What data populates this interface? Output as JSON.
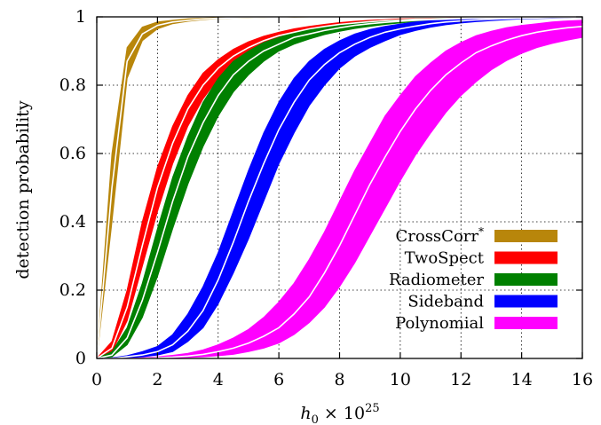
{
  "chart_data": {
    "type": "line",
    "title": "",
    "xlabel": "h0 × 10^25",
    "ylabel": "detection probability",
    "xlim": [
      0,
      16
    ],
    "ylim": [
      0,
      1
    ],
    "x_ticks": [
      "0",
      "2",
      "4",
      "6",
      "8",
      "10",
      "12",
      "14",
      "16"
    ],
    "y_ticks": [
      "0",
      "0.2",
      "0.4",
      "0.6",
      "0.8",
      "1"
    ],
    "grid": true,
    "legend_position": "bottom-right",
    "x": [
      0,
      0.5,
      1,
      1.5,
      2,
      2.5,
      3,
      3.5,
      4,
      4.5,
      5,
      5.5,
      6,
      6.5,
      7,
      7.5,
      8,
      8.5,
      9,
      9.5,
      10,
      10.5,
      11,
      11.5,
      12,
      12.5,
      13,
      13.5,
      14,
      14.5,
      15,
      15.5,
      16
    ],
    "series": [
      {
        "name": "CrossCorr*",
        "color": "#b8860b",
        "mean": [
          0,
          0.5,
          0.87,
          0.95,
          0.975,
          0.985,
          0.99,
          0.994,
          0.996,
          0.997,
          0.998,
          0.999,
          0.999,
          1,
          1,
          1,
          1,
          1,
          1,
          1,
          1,
          1,
          1,
          1,
          1,
          1,
          1,
          1,
          1,
          1,
          1,
          1,
          1
        ],
        "lower": [
          0,
          0.4,
          0.82,
          0.93,
          0.965,
          0.98,
          0.987,
          0.992,
          0.995,
          0.996,
          0.997,
          0.998,
          0.999,
          0.999,
          1,
          1,
          1,
          1,
          1,
          1,
          1,
          1,
          1,
          1,
          1,
          1,
          1,
          1,
          1,
          1,
          1,
          1,
          1
        ],
        "upper": [
          0,
          0.6,
          0.91,
          0.97,
          0.985,
          0.99,
          0.994,
          0.996,
          0.998,
          0.999,
          0.999,
          1,
          1,
          1,
          1,
          1,
          1,
          1,
          1,
          1,
          1,
          1,
          1,
          1,
          1,
          1,
          1,
          1,
          1,
          1,
          1,
          1,
          1
        ]
      },
      {
        "name": "TwoSpect",
        "color": "#ff0000",
        "mean": [
          0,
          0.03,
          0.15,
          0.33,
          0.5,
          0.63,
          0.73,
          0.8,
          0.85,
          0.885,
          0.91,
          0.93,
          0.945,
          0.955,
          0.965,
          0.972,
          0.978,
          0.982,
          0.986,
          0.989,
          0.991,
          0.993,
          0.994,
          0.995,
          0.996,
          0.997,
          0.997,
          0.998,
          0.998,
          0.999,
          0.999,
          0.999,
          1
        ],
        "lower": [
          0,
          0.02,
          0.11,
          0.27,
          0.43,
          0.57,
          0.68,
          0.76,
          0.82,
          0.86,
          0.89,
          0.915,
          0.932,
          0.945,
          0.956,
          0.965,
          0.972,
          0.977,
          0.982,
          0.986,
          0.988,
          0.99,
          0.992,
          0.993,
          0.994,
          0.995,
          0.996,
          0.997,
          0.997,
          0.998,
          0.998,
          0.999,
          0.999
        ],
        "upper": [
          0,
          0.05,
          0.2,
          0.4,
          0.56,
          0.68,
          0.77,
          0.835,
          0.875,
          0.905,
          0.927,
          0.943,
          0.955,
          0.965,
          0.972,
          0.978,
          0.983,
          0.987,
          0.99,
          0.992,
          0.994,
          0.995,
          0.996,
          0.997,
          0.998,
          0.998,
          0.998,
          0.999,
          0.999,
          1,
          1,
          1,
          1
        ]
      },
      {
        "name": "Radiometer",
        "color": "#008000",
        "mean": [
          0,
          0.01,
          0.06,
          0.17,
          0.31,
          0.46,
          0.59,
          0.69,
          0.77,
          0.83,
          0.87,
          0.9,
          0.92,
          0.94,
          0.95,
          0.96,
          0.968,
          0.975,
          0.98,
          0.984,
          0.987,
          0.99,
          0.992,
          0.993,
          0.995,
          0.996,
          0.997,
          0.997,
          0.998,
          0.998,
          0.999,
          0.999,
          1
        ],
        "lower": [
          0,
          0.005,
          0.04,
          0.12,
          0.24,
          0.38,
          0.51,
          0.62,
          0.71,
          0.78,
          0.83,
          0.87,
          0.9,
          0.92,
          0.935,
          0.948,
          0.958,
          0.966,
          0.972,
          0.978,
          0.982,
          0.986,
          0.988,
          0.99,
          0.992,
          0.994,
          0.995,
          0.996,
          0.997,
          0.997,
          0.998,
          0.998,
          0.999
        ],
        "upper": [
          0,
          0.02,
          0.09,
          0.22,
          0.38,
          0.53,
          0.65,
          0.75,
          0.82,
          0.87,
          0.9,
          0.925,
          0.94,
          0.955,
          0.965,
          0.972,
          0.978,
          0.983,
          0.987,
          0.99,
          0.992,
          0.994,
          0.995,
          0.996,
          0.997,
          0.998,
          0.998,
          0.999,
          0.999,
          0.999,
          1,
          1,
          1
        ]
      },
      {
        "name": "Sideband",
        "color": "#0000ff",
        "mean": [
          0,
          0,
          0.005,
          0.01,
          0.02,
          0.04,
          0.08,
          0.14,
          0.23,
          0.34,
          0.46,
          0.57,
          0.67,
          0.75,
          0.815,
          0.86,
          0.895,
          0.92,
          0.94,
          0.955,
          0.965,
          0.973,
          0.98,
          0.985,
          0.988,
          0.991,
          0.993,
          0.995,
          0.996,
          0.997,
          0.998,
          0.998,
          0.999
        ],
        "lower": [
          0,
          0,
          0.002,
          0.005,
          0.01,
          0.02,
          0.05,
          0.09,
          0.16,
          0.25,
          0.35,
          0.46,
          0.57,
          0.66,
          0.74,
          0.8,
          0.85,
          0.885,
          0.91,
          0.93,
          0.948,
          0.96,
          0.97,
          0.977,
          0.982,
          0.986,
          0.989,
          0.992,
          0.994,
          0.995,
          0.996,
          0.997,
          0.998
        ],
        "upper": [
          0,
          0.002,
          0.008,
          0.02,
          0.035,
          0.07,
          0.13,
          0.21,
          0.31,
          0.43,
          0.55,
          0.66,
          0.75,
          0.82,
          0.87,
          0.905,
          0.93,
          0.95,
          0.963,
          0.972,
          0.979,
          0.985,
          0.989,
          0.992,
          0.994,
          0.995,
          0.996,
          0.997,
          0.998,
          0.998,
          0.999,
          0.999,
          1
        ]
      },
      {
        "name": "Polynomial",
        "color": "#ff00ff",
        "mean": [
          0,
          0,
          0,
          0,
          0.002,
          0.004,
          0.007,
          0.012,
          0.02,
          0.03,
          0.045,
          0.065,
          0.09,
          0.13,
          0.18,
          0.25,
          0.33,
          0.42,
          0.51,
          0.59,
          0.665,
          0.73,
          0.785,
          0.83,
          0.865,
          0.895,
          0.915,
          0.932,
          0.945,
          0.955,
          0.962,
          0.968,
          0.972
        ],
        "lower": [
          0,
          0,
          0,
          0,
          0.001,
          0.002,
          0.003,
          0.005,
          0.008,
          0.012,
          0.02,
          0.03,
          0.045,
          0.07,
          0.105,
          0.15,
          0.21,
          0.28,
          0.36,
          0.44,
          0.52,
          0.595,
          0.66,
          0.72,
          0.77,
          0.81,
          0.845,
          0.872,
          0.893,
          0.91,
          0.922,
          0.932,
          0.94
        ],
        "upper": [
          0,
          0,
          0,
          0.002,
          0.005,
          0.009,
          0.015,
          0.025,
          0.04,
          0.06,
          0.085,
          0.12,
          0.165,
          0.22,
          0.29,
          0.37,
          0.46,
          0.55,
          0.63,
          0.71,
          0.77,
          0.825,
          0.865,
          0.9,
          0.925,
          0.945,
          0.958,
          0.968,
          0.975,
          0.98,
          0.985,
          0.988,
          0.99
        ]
      }
    ]
  }
}
